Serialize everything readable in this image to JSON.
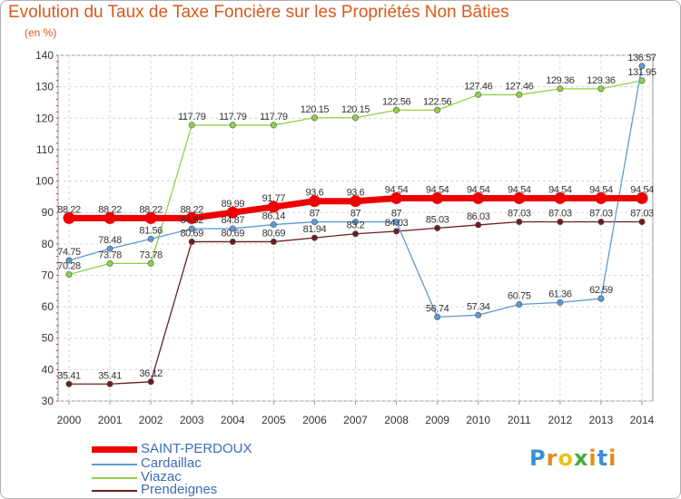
{
  "title": "Evolution du Taux de Taxe Foncière sur les Propriétés Non Bâties",
  "unit_label": "(en %)",
  "logo": {
    "text": "Proxiti",
    "letters": [
      "P",
      "r",
      "o",
      "x",
      "i",
      "t",
      "i"
    ],
    "colors": [
      "#3a8fd6",
      "#e8891a",
      "#e8c11a",
      "#3fae3a",
      "#e8891a",
      "#3a8fd6",
      "#e8891a"
    ]
  },
  "chart_data": {
    "type": "line",
    "title": "Evolution du Taux de Taxe Foncière sur les Propriétés Non Bâties",
    "xlabel": "",
    "ylabel": "(en %)",
    "ylim": [
      30,
      140
    ],
    "yticks": [
      30,
      40,
      50,
      60,
      70,
      80,
      90,
      100,
      110,
      120,
      130,
      140
    ],
    "grid": true,
    "legend": "bottom-left",
    "x": [
      "2000",
      "2001",
      "2002",
      "2003",
      "2004",
      "2005",
      "2006",
      "2007",
      "2008",
      "2009",
      "2010",
      "2011",
      "2012",
      "2013",
      "2014"
    ],
    "series": [
      {
        "name": "SAINT-PERDOUX",
        "color": "#ee0000",
        "width": 7,
        "values": [
          88.22,
          88.22,
          88.22,
          88.22,
          89.99,
          91.77,
          93.6,
          93.6,
          94.54,
          94.54,
          94.54,
          94.54,
          94.54,
          94.54,
          94.54
        ],
        "labels": [
          "88.22",
          "88.22",
          "88.22",
          "88.22",
          "89.99",
          "91.77",
          "93.6",
          "93.6",
          "94.54",
          "94.54",
          "94.54",
          "94.54",
          "94.54",
          "94.54",
          "94.54"
        ]
      },
      {
        "name": "Cardaillac",
        "color": "#5b9bd5",
        "width": 1.3,
        "values": [
          74.75,
          78.48,
          81.56,
          84.82,
          84.87,
          86.14,
          87,
          87,
          87,
          56.74,
          57.34,
          60.75,
          61.36,
          62.59,
          136.57
        ],
        "labels": [
          "74.75",
          "78.48",
          "81.56",
          "84.82",
          "84.87",
          "86.14",
          "87",
          "87",
          "87",
          "56.74",
          "57.34",
          "60.75",
          "61.36",
          "62.59",
          "136.57"
        ]
      },
      {
        "name": "Viazac",
        "color": "#90d14a",
        "width": 1.3,
        "values": [
          70.28,
          73.78,
          73.78,
          117.79,
          117.79,
          117.79,
          120.15,
          120.15,
          122.56,
          122.56,
          127.46,
          127.46,
          129.36,
          129.36,
          131.95
        ],
        "labels": [
          "70.28",
          "73.78",
          "73.78",
          "117.79",
          "117.79",
          "117.79",
          "120.15",
          "120.15",
          "122.56",
          "122.56",
          "127.46",
          "127.46",
          "129.36",
          "129.36",
          "131.95"
        ]
      },
      {
        "name": "Prendeignes",
        "color": "#6b1e1e",
        "width": 1.3,
        "values": [
          35.41,
          35.41,
          36.12,
          80.69,
          80.69,
          80.69,
          81.94,
          83.2,
          84.03,
          85.03,
          86.03,
          87.03,
          87.03,
          87.03,
          87.03
        ],
        "labels": [
          "35.41",
          "35.41",
          "36.12",
          "80.69",
          "80.69",
          "80.69",
          "81.94",
          "83.2",
          "84.03",
          "85.03",
          "86.03",
          "87.03",
          "87.03",
          "87.03",
          "87.03"
        ]
      }
    ]
  }
}
